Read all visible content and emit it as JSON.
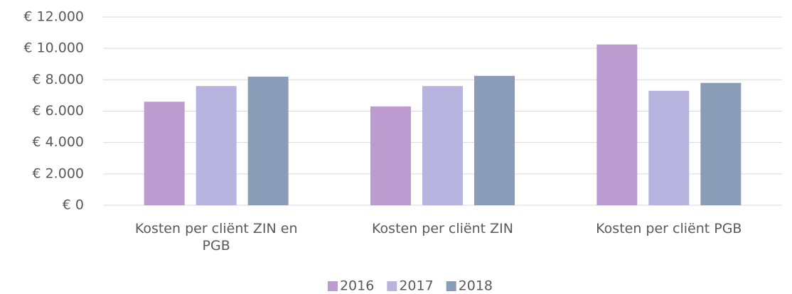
{
  "chart_data": {
    "type": "bar",
    "categories": [
      "Kosten per cliënt ZIN en PGB",
      "Kosten per cliënt ZIN",
      "Kosten per cliënt PGB"
    ],
    "series": [
      {
        "name": "2016",
        "color": "#bc9bd0",
        "values": [
          6600,
          6300,
          10250
        ]
      },
      {
        "name": "2017",
        "color": "#b7b5df",
        "values": [
          7600,
          7600,
          7300
        ]
      },
      {
        "name": "2018",
        "color": "#8b9cb8",
        "values": [
          8200,
          8250,
          7800
        ]
      }
    ],
    "ylim": [
      0,
      12000
    ],
    "yticks": [
      {
        "value": 0,
        "label": "€ 0"
      },
      {
        "value": 2000,
        "label": "€ 2.000"
      },
      {
        "value": 4000,
        "label": "€ 4.000"
      },
      {
        "value": 6000,
        "label": "€ 6.000"
      },
      {
        "value": 8000,
        "label": "€ 8.000"
      },
      {
        "value": 10000,
        "label": "€ 10.000"
      },
      {
        "value": 12000,
        "label": "€ 12.000"
      }
    ],
    "grid": true,
    "legend": "bottom"
  }
}
